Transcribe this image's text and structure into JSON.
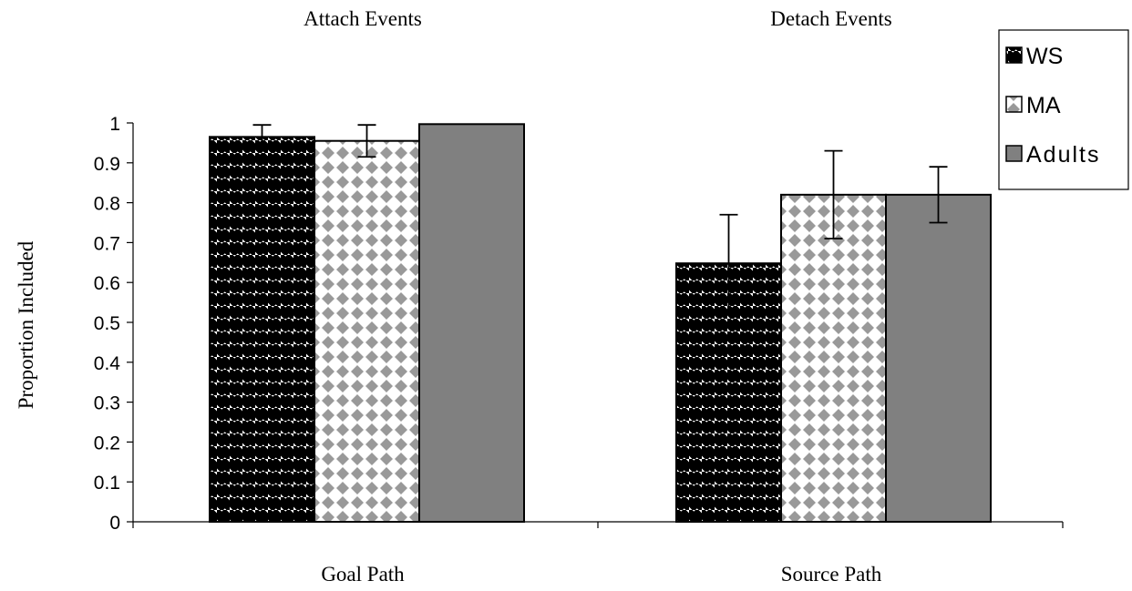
{
  "chart_data": {
    "type": "bar",
    "title": "",
    "group_titles": [
      "Attach Events",
      "Detach Events"
    ],
    "categories": [
      "Goal Path",
      "Source Path"
    ],
    "ylabel": "Proportion Included",
    "xlabel": "",
    "ylim": [
      0,
      1
    ],
    "yticks": [
      "0",
      "0.1",
      "0.2",
      "0.3",
      "0.4",
      "0.5",
      "0.6",
      "0.7",
      "0.8",
      "0.9",
      "1"
    ],
    "grid": false,
    "legend_position": "top-right",
    "series": [
      {
        "name": "WS",
        "values": [
          0.965,
          0.648
        ],
        "error": [
          0.03,
          0.122
        ],
        "pattern": "diagonal-stripes",
        "color": "#000000"
      },
      {
        "name": "MA",
        "values": [
          0.955,
          0.82
        ],
        "error": [
          0.04,
          0.11
        ],
        "pattern": "diamond-dots",
        "color": "#999999"
      },
      {
        "name": "Adults",
        "values": [
          0.997,
          0.82
        ],
        "error": [
          0,
          0.07
        ],
        "pattern": "solid",
        "color": "#808080"
      }
    ]
  }
}
